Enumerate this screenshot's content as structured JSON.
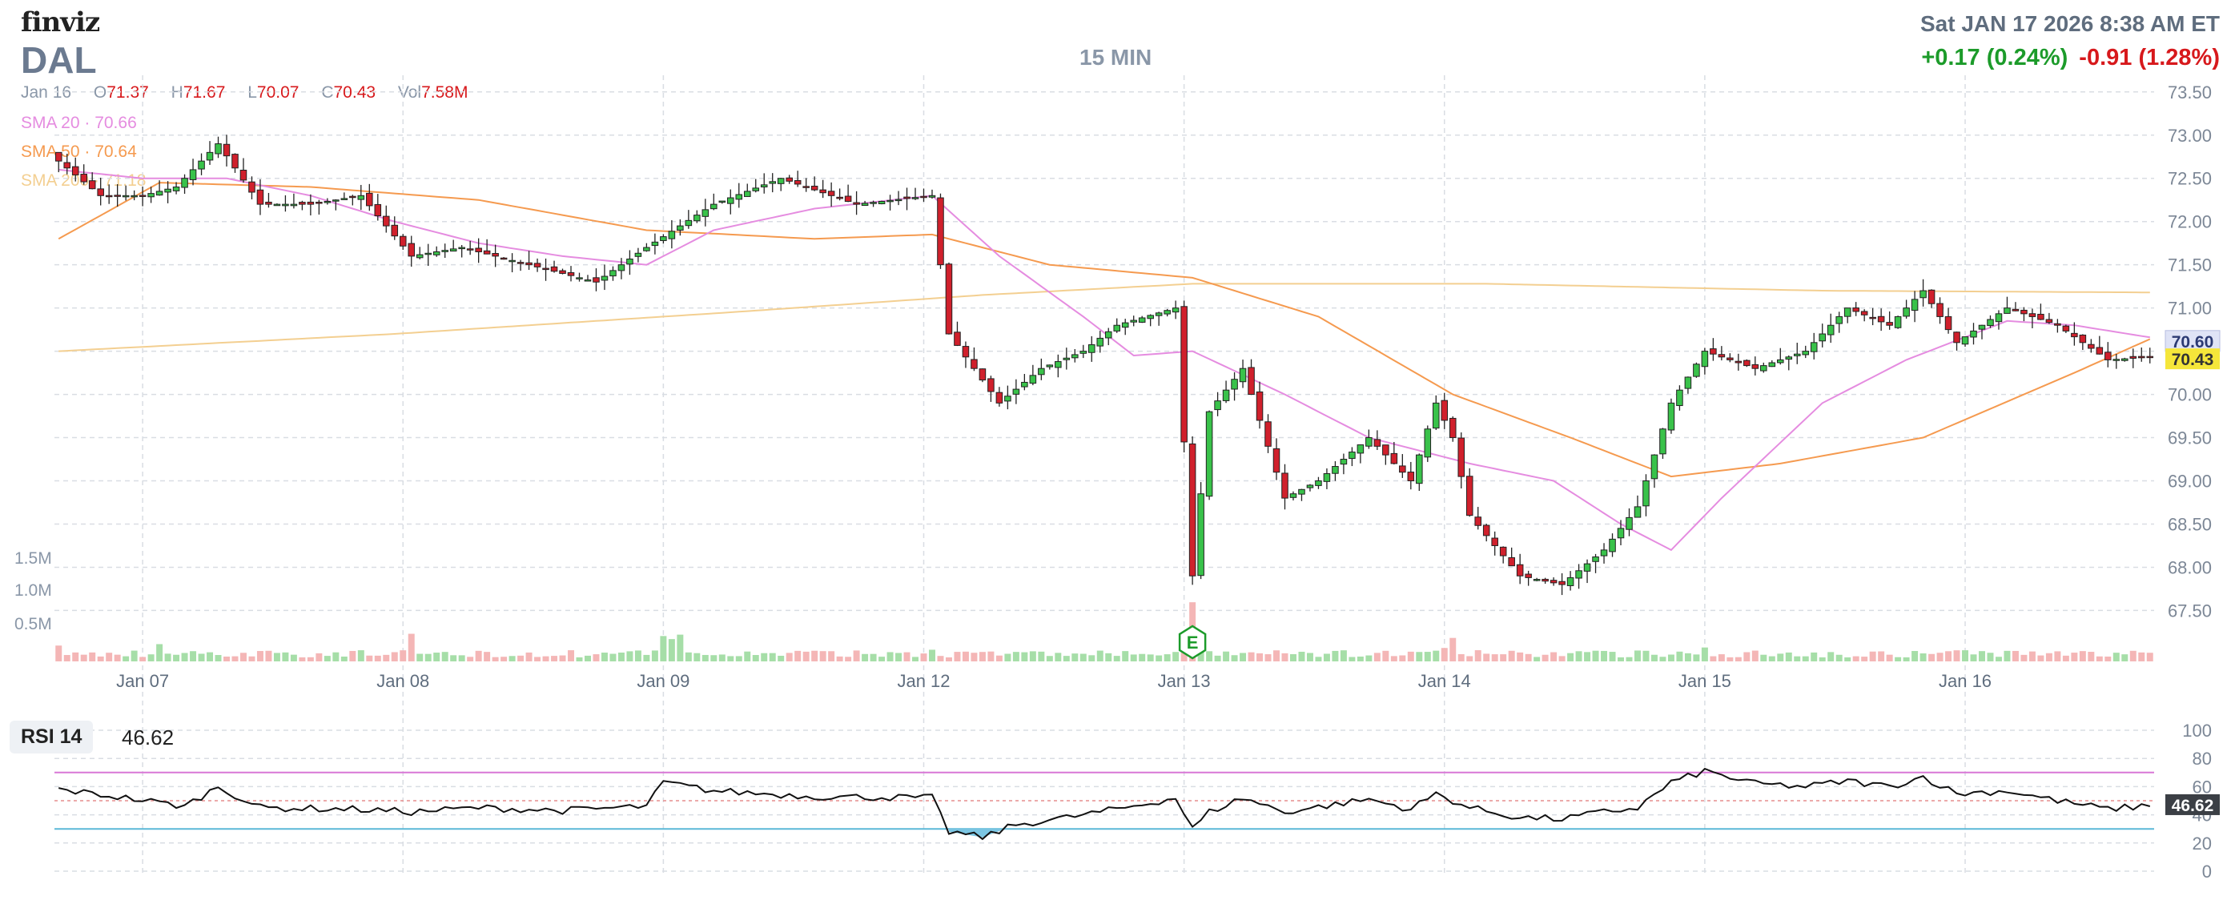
{
  "header": {
    "logo": "finviz",
    "ticker": "DAL",
    "timeframe": "15 MIN",
    "datetime": "Sat JAN 17 2026 8:38 AM ET",
    "change_positive": "+0.17 (0.24%)",
    "change_negative": "-0.91 (1.28%)"
  },
  "ohlc": {
    "date": "Jan 16",
    "open_label": "O",
    "open": "71.37",
    "high_label": "H",
    "high": "71.67",
    "low_label": "L",
    "low": "70.07",
    "close_label": "C",
    "close": "70.43",
    "vol_label": "Vol",
    "vol": "7.58M"
  },
  "legend": {
    "sma20": "SMA 20 · 70.66",
    "sma50": "SMA 50 · 70.64",
    "sma200": "SMA 200 · 71.18"
  },
  "rsi": {
    "label": "RSI 14",
    "value": "46.62"
  },
  "colors": {
    "up": "#39c24a",
    "down": "#d0202c",
    "sma20": "#e58ce0",
    "sma50": "#f59a4f",
    "sma200": "#f3cf91",
    "grid": "#d9dde3",
    "rsi_upper": "#d877d6",
    "rsi_lower": "#5bb8d7",
    "vol_up": "#a6dea8",
    "vol_down": "#f4b6b6",
    "price_tag": "#f5e63a",
    "sma_tag": "#dfe3f6"
  },
  "chart_data": [
    {
      "type": "candlestick",
      "title": "",
      "x_labels": [
        "Jan 07",
        "Jan 08",
        "Jan 09",
        "Jan 12",
        "Jan 13",
        "Jan 14",
        "Jan 15",
        "Jan 16"
      ],
      "y_ticks": [
        "73.50",
        "73.00",
        "72.50",
        "72.00",
        "71.50",
        "71.00",
        "70.50",
        "70.00",
        "69.50",
        "69.00",
        "68.50",
        "68.00",
        "67.50"
      ],
      "ylim": [
        67.3,
        73.6
      ],
      "vol_ticks": [
        "1.5M",
        "1.0M",
        "0.5M"
      ],
      "last_close_tag": "70.43",
      "sma_tag": "70.60",
      "earnings_marker": "E",
      "anchors": [
        {
          "i": 0,
          "p": 72.7
        },
        {
          "i": 5,
          "p": 72.3
        },
        {
          "i": 10,
          "p": 72.3
        },
        {
          "i": 14,
          "p": 72.4
        },
        {
          "i": 19,
          "p": 72.9
        },
        {
          "i": 24,
          "p": 72.2
        },
        {
          "i": 30,
          "p": 72.2
        },
        {
          "i": 36,
          "p": 72.3
        },
        {
          "i": 42,
          "p": 71.6
        },
        {
          "i": 48,
          "p": 71.7
        },
        {
          "i": 56,
          "p": 71.5
        },
        {
          "i": 64,
          "p": 71.3
        },
        {
          "i": 70,
          "p": 71.7
        },
        {
          "i": 78,
          "p": 72.2
        },
        {
          "i": 86,
          "p": 72.5
        },
        {
          "i": 95,
          "p": 72.2
        },
        {
          "i": 104,
          "p": 72.3
        },
        {
          "i": 106,
          "p": 70.7
        },
        {
          "i": 112,
          "p": 69.9
        },
        {
          "i": 117,
          "p": 70.3
        },
        {
          "i": 122,
          "p": 70.5
        },
        {
          "i": 126,
          "p": 70.8
        },
        {
          "i": 133,
          "p": 71.0
        },
        {
          "i": 135,
          "p": 67.9
        },
        {
          "i": 137,
          "p": 69.8
        },
        {
          "i": 141,
          "p": 70.3
        },
        {
          "i": 146,
          "p": 68.8
        },
        {
          "i": 150,
          "p": 69.0
        },
        {
          "i": 156,
          "p": 69.5
        },
        {
          "i": 161,
          "p": 69.0
        },
        {
          "i": 164,
          "p": 69.9
        },
        {
          "i": 166,
          "p": 69.5
        },
        {
          "i": 168,
          "p": 68.6
        },
        {
          "i": 174,
          "p": 67.9
        },
        {
          "i": 179,
          "p": 67.8
        },
        {
          "i": 184,
          "p": 68.2
        },
        {
          "i": 188,
          "p": 68.7
        },
        {
          "i": 192,
          "p": 69.9
        },
        {
          "i": 196,
          "p": 70.5
        },
        {
          "i": 202,
          "p": 70.3
        },
        {
          "i": 208,
          "p": 70.5
        },
        {
          "i": 213,
          "p": 71.0
        },
        {
          "i": 218,
          "p": 70.8
        },
        {
          "i": 222,
          "p": 71.2
        },
        {
          "i": 226,
          "p": 70.6
        },
        {
          "i": 232,
          "p": 71.0
        },
        {
          "i": 238,
          "p": 70.8
        },
        {
          "i": 244,
          "p": 70.4
        },
        {
          "i": 249,
          "p": 70.43
        }
      ],
      "sma20_points": [
        {
          "i": 0,
          "p": 72.6
        },
        {
          "i": 10,
          "p": 72.5
        },
        {
          "i": 20,
          "p": 72.5
        },
        {
          "i": 30,
          "p": 72.3
        },
        {
          "i": 40,
          "p": 72.0
        },
        {
          "i": 50,
          "p": 71.75
        },
        {
          "i": 60,
          "p": 71.6
        },
        {
          "i": 70,
          "p": 71.5
        },
        {
          "i": 78,
          "p": 71.9
        },
        {
          "i": 90,
          "p": 72.15
        },
        {
          "i": 104,
          "p": 72.3
        },
        {
          "i": 112,
          "p": 71.6
        },
        {
          "i": 122,
          "p": 70.9
        },
        {
          "i": 128,
          "p": 70.45
        },
        {
          "i": 135,
          "p": 70.5
        },
        {
          "i": 146,
          "p": 70.0
        },
        {
          "i": 156,
          "p": 69.5
        },
        {
          "i": 168,
          "p": 69.2
        },
        {
          "i": 178,
          "p": 69.0
        },
        {
          "i": 186,
          "p": 68.5
        },
        {
          "i": 192,
          "p": 68.2
        },
        {
          "i": 198,
          "p": 68.8
        },
        {
          "i": 210,
          "p": 69.9
        },
        {
          "i": 220,
          "p": 70.4
        },
        {
          "i": 232,
          "p": 70.85
        },
        {
          "i": 240,
          "p": 70.8
        },
        {
          "i": 249,
          "p": 70.66
        }
      ],
      "sma50_points": [
        {
          "i": 0,
          "p": 71.8
        },
        {
          "i": 12,
          "p": 72.45
        },
        {
          "i": 30,
          "p": 72.4
        },
        {
          "i": 50,
          "p": 72.25
        },
        {
          "i": 70,
          "p": 71.9
        },
        {
          "i": 90,
          "p": 71.8
        },
        {
          "i": 104,
          "p": 71.85
        },
        {
          "i": 118,
          "p": 71.5
        },
        {
          "i": 135,
          "p": 71.35
        },
        {
          "i": 150,
          "p": 70.9
        },
        {
          "i": 166,
          "p": 70.0
        },
        {
          "i": 180,
          "p": 69.5
        },
        {
          "i": 192,
          "p": 69.05
        },
        {
          "i": 205,
          "p": 69.2
        },
        {
          "i": 222,
          "p": 69.5
        },
        {
          "i": 240,
          "p": 70.25
        },
        {
          "i": 249,
          "p": 70.64
        }
      ],
      "sma200_points": [
        {
          "i": 0,
          "p": 70.5
        },
        {
          "i": 40,
          "p": 70.7
        },
        {
          "i": 80,
          "p": 70.95
        },
        {
          "i": 110,
          "p": 71.15
        },
        {
          "i": 135,
          "p": 71.28
        },
        {
          "i": 170,
          "p": 71.28
        },
        {
          "i": 210,
          "p": 71.2
        },
        {
          "i": 249,
          "p": 71.18
        }
      ]
    },
    {
      "type": "line",
      "title": "RSI 14",
      "y_ticks": [
        "100",
        "80",
        "60",
        "40",
        "20",
        "0"
      ],
      "ylim": [
        0,
        100
      ],
      "upper_band": 70,
      "lower_band": 30,
      "last_value_tag": "46.62",
      "anchors": [
        {
          "i": 0,
          "p": 58
        },
        {
          "i": 8,
          "p": 52
        },
        {
          "i": 15,
          "p": 46
        },
        {
          "i": 19,
          "p": 60
        },
        {
          "i": 24,
          "p": 45
        },
        {
          "i": 35,
          "p": 44
        },
        {
          "i": 42,
          "p": 42
        },
        {
          "i": 50,
          "p": 45
        },
        {
          "i": 60,
          "p": 43
        },
        {
          "i": 70,
          "p": 46
        },
        {
          "i": 72,
          "p": 63
        },
        {
          "i": 78,
          "p": 57
        },
        {
          "i": 90,
          "p": 53
        },
        {
          "i": 104,
          "p": 52
        },
        {
          "i": 106,
          "p": 28
        },
        {
          "i": 110,
          "p": 24
        },
        {
          "i": 114,
          "p": 33
        },
        {
          "i": 120,
          "p": 38
        },
        {
          "i": 126,
          "p": 44
        },
        {
          "i": 133,
          "p": 52
        },
        {
          "i": 135,
          "p": 30
        },
        {
          "i": 137,
          "p": 42
        },
        {
          "i": 141,
          "p": 52
        },
        {
          "i": 146,
          "p": 42
        },
        {
          "i": 156,
          "p": 51
        },
        {
          "i": 161,
          "p": 44
        },
        {
          "i": 164,
          "p": 55
        },
        {
          "i": 168,
          "p": 45
        },
        {
          "i": 174,
          "p": 38
        },
        {
          "i": 179,
          "p": 37
        },
        {
          "i": 184,
          "p": 42
        },
        {
          "i": 188,
          "p": 45
        },
        {
          "i": 192,
          "p": 63
        },
        {
          "i": 196,
          "p": 71
        },
        {
          "i": 202,
          "p": 62
        },
        {
          "i": 208,
          "p": 60
        },
        {
          "i": 213,
          "p": 64
        },
        {
          "i": 218,
          "p": 60
        },
        {
          "i": 222,
          "p": 67
        },
        {
          "i": 226,
          "p": 55
        },
        {
          "i": 232,
          "p": 57
        },
        {
          "i": 238,
          "p": 50
        },
        {
          "i": 244,
          "p": 44
        },
        {
          "i": 249,
          "p": 46.62
        }
      ]
    }
  ]
}
